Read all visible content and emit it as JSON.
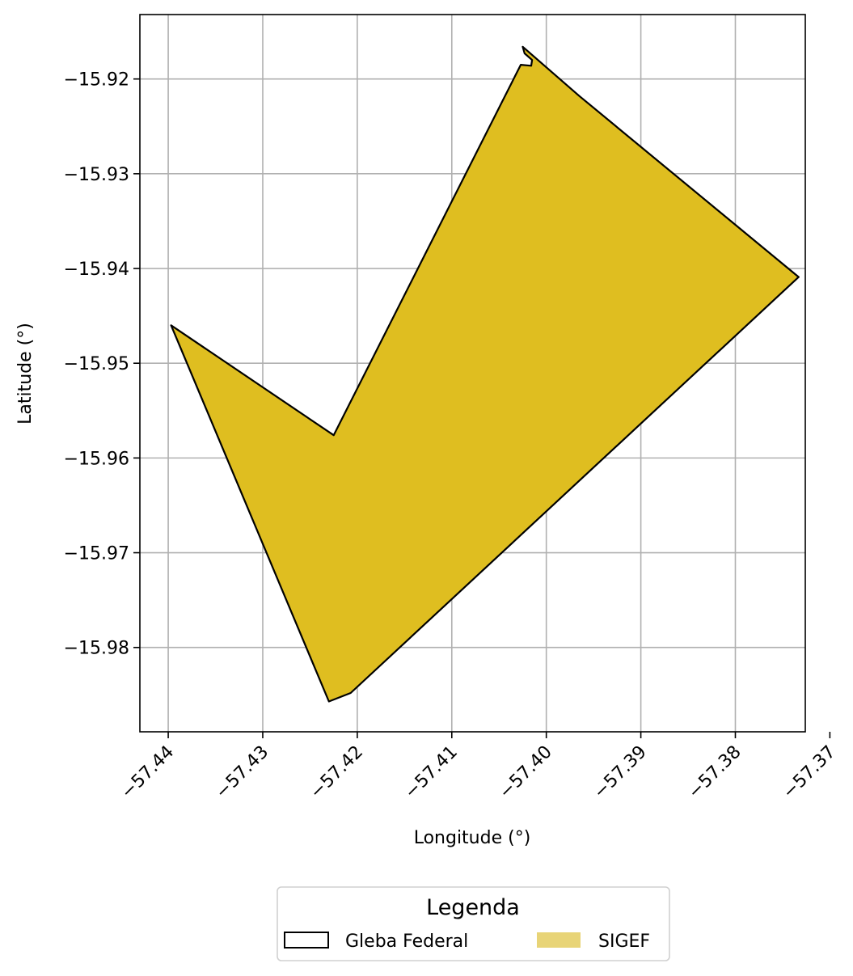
{
  "map": {
    "xlabel": "Longitude (°)",
    "ylabel": "Latitude (°)",
    "xlim": [
      -57.443,
      -57.3726
    ],
    "ylim": [
      -15.9889,
      -15.9132
    ],
    "x_ticks": [
      {
        "value": -57.44,
        "label": "−57.44"
      },
      {
        "value": -57.43,
        "label": "−57.43"
      },
      {
        "value": -57.42,
        "label": "−57.42"
      },
      {
        "value": -57.41,
        "label": "−57.41"
      },
      {
        "value": -57.4,
        "label": "−57.40"
      },
      {
        "value": -57.39,
        "label": "−57.39"
      },
      {
        "value": -57.38,
        "label": "−57.38"
      },
      {
        "value": -57.37,
        "label": "−57.37"
      }
    ],
    "y_ticks": [
      {
        "value": -15.92,
        "label": "−15.92"
      },
      {
        "value": -15.93,
        "label": "−15.93"
      },
      {
        "value": -15.94,
        "label": "−15.94"
      },
      {
        "value": -15.95,
        "label": "−15.95"
      },
      {
        "value": -15.96,
        "label": "−15.96"
      },
      {
        "value": -15.97,
        "label": "−15.97"
      },
      {
        "value": -15.98,
        "label": "−15.98"
      }
    ],
    "grid": true,
    "polygon": {
      "fill": "#dfbe20",
      "stroke": "#000000",
      "points": [
        [
          -57.4397,
          -15.946
        ],
        [
          -57.4225,
          -15.9576
        ],
        [
          -57.4027,
          -15.9185
        ],
        [
          -57.4016,
          -15.9186
        ],
        [
          -57.4015,
          -15.918
        ],
        [
          -57.4023,
          -15.9173
        ],
        [
          -57.4025,
          -15.9166
        ],
        [
          -57.3965,
          -15.9218
        ],
        [
          -57.3733,
          -15.9409
        ],
        [
          -57.4207,
          -15.9848
        ],
        [
          -57.423,
          -15.9857
        ]
      ]
    },
    "legend": {
      "title": "Legenda",
      "placement": "bottom-center",
      "entries": [
        {
          "label": "Gleba Federal",
          "fill": "none",
          "stroke": "#000000"
        },
        {
          "label": "SIGEF",
          "fill": "#e8d477",
          "stroke": "none"
        }
      ]
    }
  }
}
